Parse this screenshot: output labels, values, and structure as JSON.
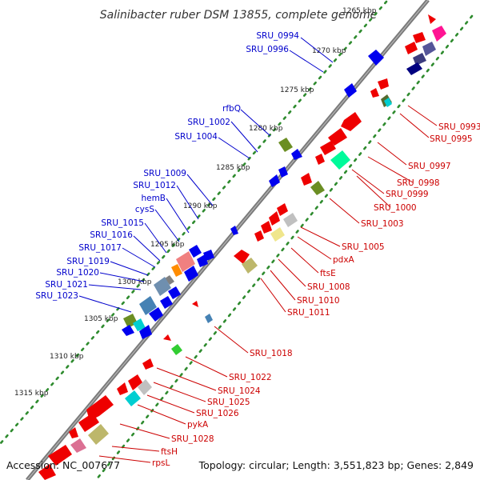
{
  "title": "Salinibacter ruber DSM 13855, complete genome",
  "footer": {
    "accession": "Accession: NC_007677",
    "topology": "Topology: circular; Length: 3,551,823 bp; Genes: 2,849"
  },
  "ticks": [
    {
      "label": "1265 kbp"
    },
    {
      "label": "1270 kbp"
    },
    {
      "label": "1275 kbp"
    },
    {
      "label": "1280 kbp"
    },
    {
      "label": "1285 kbp"
    },
    {
      "label": "1290 kbp"
    },
    {
      "label": "1295 kbp"
    },
    {
      "label": "1300 kbp"
    },
    {
      "label": "1305 kbp"
    },
    {
      "label": "1310 kbp"
    },
    {
      "label": "1315 kbp"
    }
  ],
  "left_genes": [
    {
      "name": "SRU_0994"
    },
    {
      "name": "SRU_0996"
    },
    {
      "name": "rfbQ"
    },
    {
      "name": "SRU_1002"
    },
    {
      "name": "SRU_1004"
    },
    {
      "name": "SRU_1009"
    },
    {
      "name": "SRU_1012"
    },
    {
      "name": "hemB"
    },
    {
      "name": "cysS"
    },
    {
      "name": "SRU_1015"
    },
    {
      "name": "SRU_1016"
    },
    {
      "name": "SRU_1017"
    },
    {
      "name": "SRU_1019"
    },
    {
      "name": "SRU_1020"
    },
    {
      "name": "SRU_1021"
    },
    {
      "name": "SRU_1023"
    }
  ],
  "right_genes": [
    {
      "name": "SRU_0993"
    },
    {
      "name": "SRU_0995"
    },
    {
      "name": "SRU_0997"
    },
    {
      "name": "SRU_0998"
    },
    {
      "name": "SRU_0999"
    },
    {
      "name": "SRU_1000"
    },
    {
      "name": "SRU_1003"
    },
    {
      "name": "SRU_1005"
    },
    {
      "name": "pdxA"
    },
    {
      "name": "ftsE"
    },
    {
      "name": "SRU_1008"
    },
    {
      "name": "SRU_1010"
    },
    {
      "name": "SRU_1011"
    },
    {
      "name": "SRU_1018"
    },
    {
      "name": "SRU_1022"
    },
    {
      "name": "SRU_1024"
    },
    {
      "name": "SRU_1025"
    },
    {
      "name": "SRU_1026"
    },
    {
      "name": "pykA"
    },
    {
      "name": "SRU_1028"
    },
    {
      "name": "ftsH"
    },
    {
      "name": "rpsL"
    }
  ],
  "colors": {
    "backbone": "#7a7a7a",
    "tick_dots": "#2e8b2e",
    "left_label": "#0000cc",
    "right_label": "#cc0000",
    "cds_forward": "#ee0000",
    "cds_reverse": "#0000ee"
  }
}
